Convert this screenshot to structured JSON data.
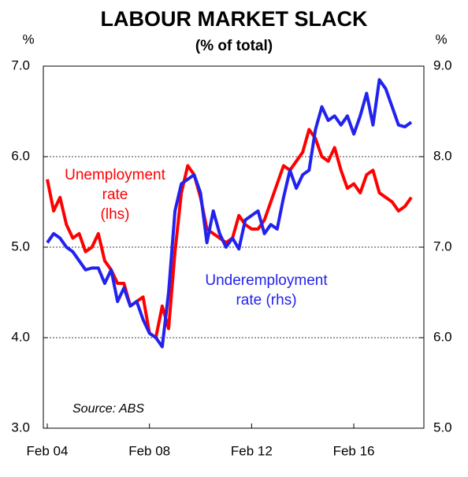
{
  "chart_data": {
    "type": "line",
    "title": "LABOUR MARKET SLACK",
    "subtitle": "(% of total)",
    "y_unit": "%",
    "y2_unit": "%",
    "categories": [
      "Feb 04",
      null,
      null,
      null,
      null,
      null,
      null,
      null,
      null,
      null,
      null,
      null,
      null,
      null,
      null,
      null,
      "Feb 08",
      null,
      null,
      null,
      null,
      null,
      null,
      null,
      null,
      null,
      null,
      null,
      null,
      null,
      null,
      null,
      "Feb 12",
      null,
      null,
      null,
      null,
      null,
      null,
      null,
      null,
      null,
      null,
      null,
      null,
      null,
      null,
      null,
      "Feb 16",
      null,
      null,
      null,
      null,
      null,
      null,
      null,
      null,
      null
    ],
    "ylim": [
      3,
      7
    ],
    "yticks": [
      {
        "value": 3,
        "label": "3.0"
      },
      {
        "value": 4,
        "label": "4.0"
      },
      {
        "value": 5,
        "label": "5.0"
      },
      {
        "value": 6,
        "label": "6.0"
      },
      {
        "value": 7,
        "label": "7.0"
      }
    ],
    "y2lim": [
      5,
      9
    ],
    "y2ticks": [
      {
        "value": 5,
        "label": "5.0"
      },
      {
        "value": 6,
        "label": "6.0"
      },
      {
        "value": 7,
        "label": "7.0"
      },
      {
        "value": 8,
        "label": "8.0"
      },
      {
        "value": 9,
        "label": "9.0"
      }
    ],
    "grid": true,
    "series": [
      {
        "name": "Unemployment rate (lhs)",
        "color": "#ff0000",
        "axis": "y",
        "label_lines": [
          "Unemployment",
          "rate",
          "(lhs)"
        ],
        "values": [
          5.75,
          5.4,
          5.55,
          5.25,
          5.1,
          5.15,
          4.95,
          5.0,
          5.15,
          4.85,
          4.75,
          4.6,
          4.6,
          4.35,
          4.4,
          4.45,
          4.05,
          4.0,
          4.35,
          4.1,
          4.95,
          5.6,
          5.9,
          5.8,
          5.55,
          5.2,
          5.15,
          5.1,
          5.05,
          5.1,
          5.35,
          5.25,
          5.2,
          5.2,
          5.3,
          5.5,
          5.7,
          5.9,
          5.85,
          5.95,
          6.05,
          6.3,
          6.2,
          6.0,
          5.95,
          6.1,
          5.85,
          5.65,
          5.7,
          5.6,
          5.8,
          5.85,
          5.6,
          5.55,
          5.5,
          5.4,
          5.45,
          5.55
        ]
      },
      {
        "name": "Underemployment rate (rhs)",
        "color": "#2222ee",
        "axis": "y2",
        "label_lines": [
          "Underemployment",
          "rate (rhs)"
        ],
        "values": [
          7.05,
          7.15,
          7.1,
          7.0,
          6.95,
          6.85,
          6.75,
          6.77,
          6.77,
          6.6,
          6.75,
          6.4,
          6.55,
          6.35,
          6.4,
          6.2,
          6.05,
          6.0,
          5.9,
          6.5,
          7.4,
          7.7,
          7.75,
          7.8,
          7.6,
          7.05,
          7.4,
          7.15,
          7.0,
          7.1,
          6.98,
          7.3,
          7.35,
          7.4,
          7.15,
          7.25,
          7.2,
          7.55,
          7.85,
          7.65,
          7.8,
          7.85,
          8.3,
          8.55,
          8.4,
          8.45,
          8.35,
          8.45,
          8.25,
          8.45,
          8.7,
          8.35,
          8.85,
          8.75,
          8.55,
          8.35,
          8.33,
          8.38
        ]
      }
    ],
    "source": "Source: ABS"
  }
}
